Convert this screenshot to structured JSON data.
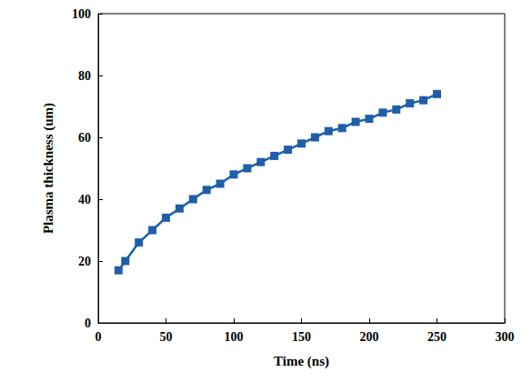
{
  "chart_data": {
    "type": "line",
    "x_label": "Time (ns)",
    "y_label": "Plasma thickness (um)",
    "x": [
      15,
      20,
      30,
      40,
      50,
      60,
      70,
      80,
      90,
      100,
      110,
      120,
      130,
      140,
      150,
      160,
      170,
      180,
      190,
      200,
      210,
      220,
      230,
      240,
      250
    ],
    "values": [
      17,
      20,
      26,
      30,
      34,
      37,
      40,
      43,
      45,
      48,
      50,
      52,
      54,
      56,
      58,
      60,
      62,
      63,
      65,
      66,
      68,
      69,
      71,
      72,
      74
    ],
    "color": "#1f5fa8",
    "marker": "square",
    "line_style": "solid",
    "xlim": [
      0,
      300
    ],
    "xticks": [
      0,
      50,
      100,
      150,
      200,
      250,
      300
    ],
    "ylim": [
      0,
      100
    ],
    "yticks": [
      0,
      20,
      40,
      60,
      80,
      100
    ],
    "grid": false
  }
}
